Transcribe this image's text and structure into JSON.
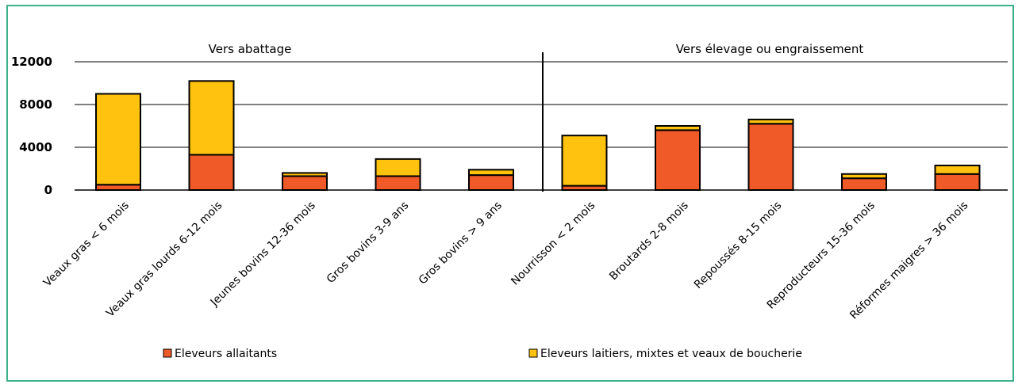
{
  "chart_data": {
    "type": "bar",
    "stacked": true,
    "sections": [
      {
        "label": "Vers abattage",
        "from": 0,
        "to": 4
      },
      {
        "label": "Vers élevage ou engraissement",
        "from": 5,
        "to": 9
      }
    ],
    "categories": [
      "Veaux gras < 6 mois",
      "Veaux gras lourds 6-12 mois",
      "Jeunes bovins 12-36 mois",
      "Gros bovins 3-9 ans",
      "Gros bovins > 9 ans",
      "Nourrisson < 2 mois",
      "Broutards 2-8 mois",
      "Repoussés 8-15 mois",
      "Reproducteurs 15-36 mois",
      "Réformes maigres > 36 mois"
    ],
    "series": [
      {
        "name": "Eleveurs allaitants",
        "color": "#f05a28",
        "values": [
          500,
          3300,
          1300,
          1300,
          1400,
          400,
          5600,
          6200,
          1100,
          1500
        ]
      },
      {
        "name": "Eleveurs laitiers, mixtes et veaux de boucherie",
        "color": "#ffc20e",
        "values": [
          8500,
          6900,
          300,
          1600,
          500,
          4700,
          400,
          400,
          400,
          800
        ]
      }
    ],
    "yticks": [
      "0",
      "4000",
      "8000",
      "12000"
    ],
    "ylim": [
      0,
      12000
    ],
    "grid": true,
    "legend": "bottom"
  }
}
